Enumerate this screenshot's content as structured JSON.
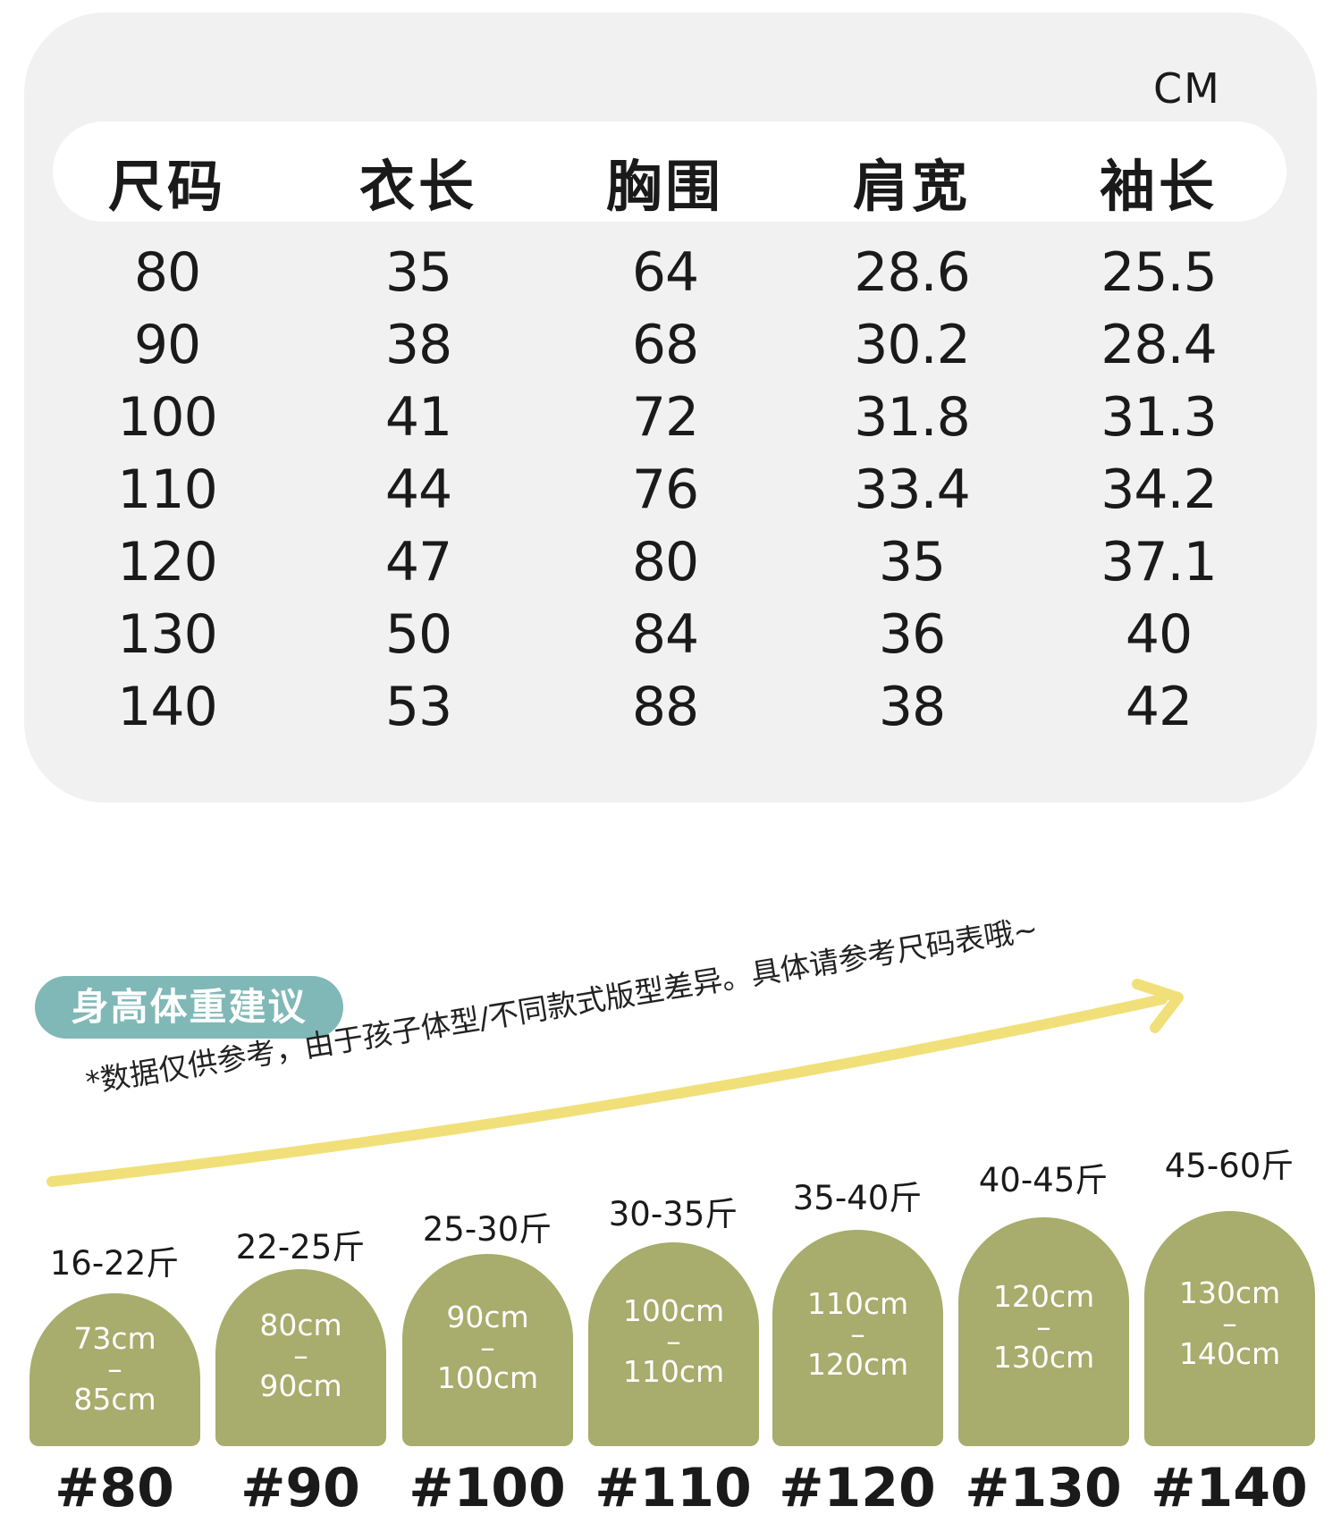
{
  "size_table": {
    "unit": "CM",
    "headers": [
      "尺码",
      "衣长",
      "胸围",
      "肩宽",
      "袖长"
    ],
    "rows": [
      [
        "80",
        "35",
        "64",
        "28.6",
        "25.5"
      ],
      [
        "90",
        "38",
        "68",
        "30.2",
        "28.4"
      ],
      [
        "100",
        "41",
        "72",
        "31.8",
        "31.3"
      ],
      [
        "110",
        "44",
        "76",
        "33.4",
        "34.2"
      ],
      [
        "120",
        "47",
        "80",
        "35",
        "37.1"
      ],
      [
        "130",
        "50",
        "84",
        "36",
        "40"
      ],
      [
        "140",
        "53",
        "88",
        "38",
        "42"
      ]
    ]
  },
  "recommendation": {
    "title": "身高体重建议",
    "note": "*数据仅供参考，由于孩子体型/不同款式版型差异。具体请参考尺码表哦~",
    "colors": {
      "pill": "#7fb8b7",
      "arch": "#a8ac6c",
      "arrow": "#f1e07a"
    },
    "sizes": [
      {
        "weight": "16-22斤",
        "height_from": "73cm",
        "dash": "–",
        "height_to": "85cm",
        "size": "#80"
      },
      {
        "weight": "22-25斤",
        "height_from": "80cm",
        "dash": "–",
        "height_to": "90cm",
        "size": "#90"
      },
      {
        "weight": "25-30斤",
        "height_from": "90cm",
        "dash": "–",
        "height_to": "100cm",
        "size": "#100"
      },
      {
        "weight": "30-35斤",
        "height_from": "100cm",
        "dash": "–",
        "height_to": "110cm",
        "size": "#110"
      },
      {
        "weight": "35-40斤",
        "height_from": "110cm",
        "dash": "–",
        "height_to": "120cm",
        "size": "#120"
      },
      {
        "weight": "40-45斤",
        "height_from": "120cm",
        "dash": "–",
        "height_to": "130cm",
        "size": "#130"
      },
      {
        "weight": "45-60斤",
        "height_from": "130cm",
        "dash": "–",
        "height_to": "140cm",
        "size": "#140"
      }
    ]
  }
}
